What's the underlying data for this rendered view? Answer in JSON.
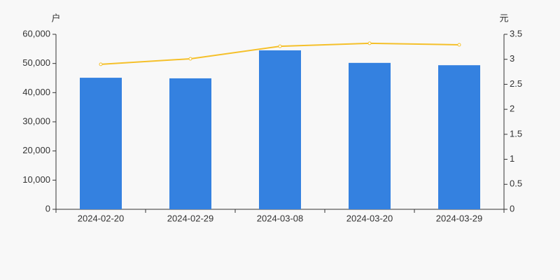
{
  "chart_data": {
    "type": "bar",
    "y_label": "户",
    "y2_label": "元",
    "categories": [
      "2024-02-20",
      "2024-02-29",
      "2024-03-08",
      "2024-03-20",
      "2024-03-29"
    ],
    "series": [
      {
        "type": "bar",
        "color": "#3481e0",
        "values": [
          45100,
          44900,
          54500,
          50200,
          49400
        ]
      },
      {
        "type": "line",
        "axis": "y2",
        "color": "#f5c02a",
        "values": [
          2.9,
          3.01,
          3.26,
          3.32,
          3.29
        ]
      }
    ],
    "ylim": [
      0,
      60000
    ],
    "yticks": [
      0,
      {
        "value": 10000,
        "label": "10,000"
      },
      {
        "value": 20000,
        "label": "20,000"
      },
      {
        "value": 30000,
        "label": "30,000"
      },
      {
        "value": 40000,
        "label": "40,000"
      },
      {
        "value": 50000,
        "label": "50,000"
      },
      {
        "value": 60000,
        "label": "60,000"
      }
    ],
    "y2lim": [
      0,
      3.5
    ],
    "y2ticks": [
      0,
      0.5,
      1,
      1.5,
      2,
      2.5,
      3,
      3.5
    ],
    "grid": false
  }
}
